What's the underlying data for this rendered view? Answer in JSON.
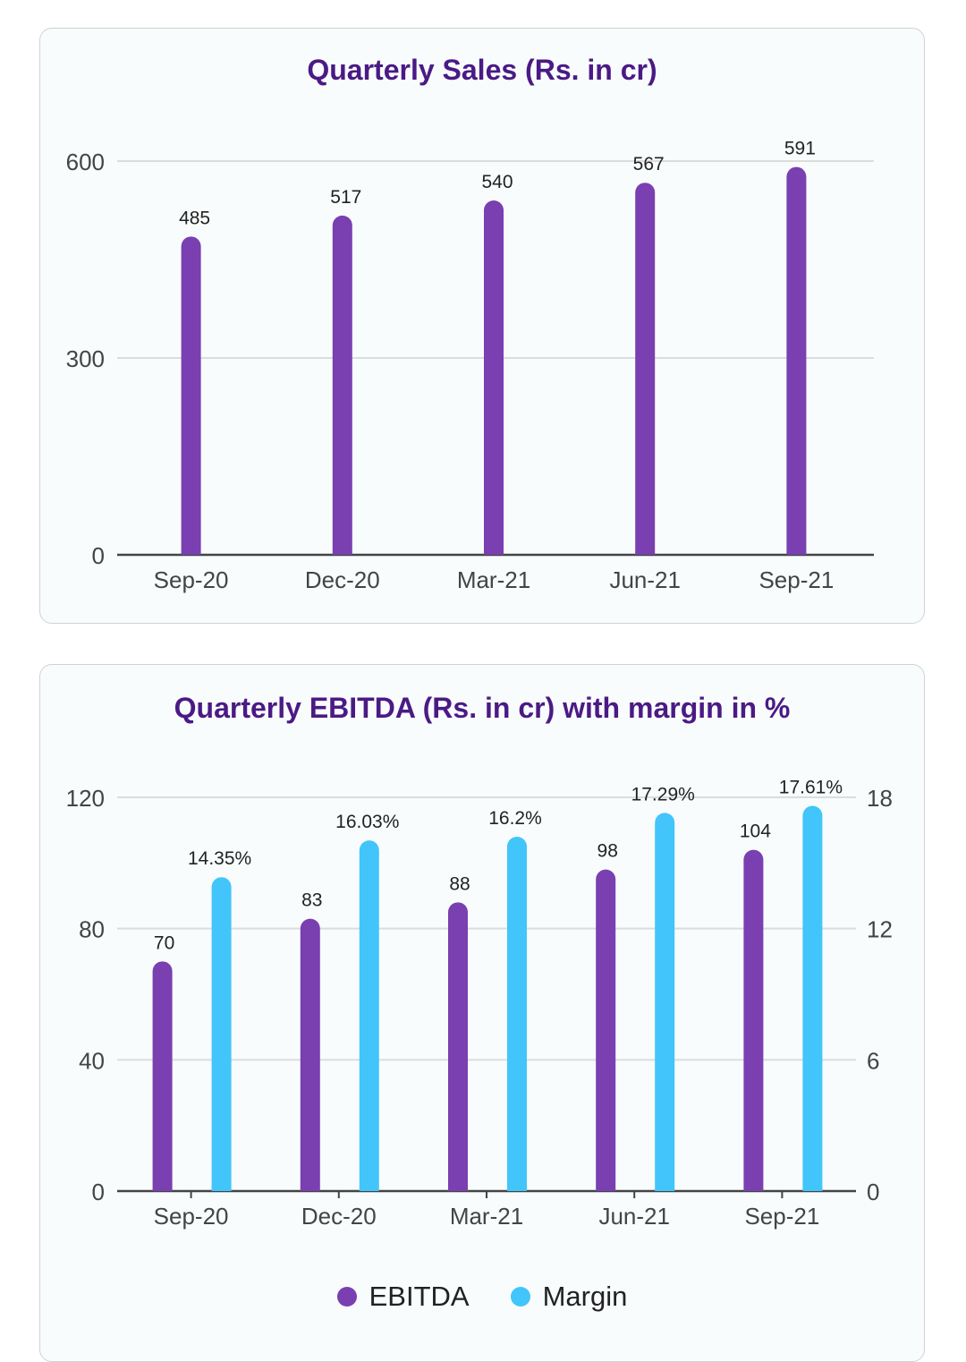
{
  "charts": {
    "sales": {
      "title": "Quarterly Sales (Rs. in cr)"
    },
    "ebitda": {
      "title": "Quarterly EBITDA (Rs. in cr) with margin in %",
      "legend": [
        {
          "label": "EBITDA",
          "color": "#7a3fb0"
        },
        {
          "label": "Margin",
          "color": "#42c5fa"
        }
      ]
    }
  },
  "chart_data": [
    {
      "type": "bar",
      "title": "Quarterly Sales (Rs. in cr)",
      "categories": [
        "Sep-20",
        "Dec-20",
        "Mar-21",
        "Jun-21",
        "Sep-21"
      ],
      "values": [
        485,
        517,
        540,
        567,
        591
      ],
      "data_labels": [
        "485",
        "517",
        "540",
        "567",
        "591"
      ],
      "y_ticks": [
        "0",
        "300",
        "600"
      ],
      "ylim": [
        0,
        600
      ],
      "grid": true,
      "color": "#7a3fb0"
    },
    {
      "type": "bar",
      "title": "Quarterly EBITDA (Rs. in cr) with margin in %",
      "categories": [
        "Sep-20",
        "Dec-20",
        "Mar-21",
        "Jun-21",
        "Sep-21"
      ],
      "series": [
        {
          "name": "EBITDA",
          "axis": "left",
          "values": [
            70,
            83,
            88,
            98,
            104
          ],
          "data_labels": [
            "70",
            "83",
            "88",
            "98",
            "104"
          ],
          "color": "#7a3fb0"
        },
        {
          "name": "Margin",
          "axis": "right",
          "values": [
            14.35,
            16.03,
            16.2,
            17.29,
            17.61
          ],
          "data_labels": [
            "14.35%",
            "16.03%",
            "16.2%",
            "17.29%",
            "17.61%"
          ],
          "color": "#42c5fa"
        }
      ],
      "y_ticks_left": [
        "0",
        "40",
        "80",
        "120"
      ],
      "y_ticks_right": [
        "0",
        "6",
        "12",
        "18"
      ],
      "ylim_left": [
        0,
        120
      ],
      "ylim_right": [
        0,
        18
      ],
      "grid": true,
      "legend_position": "bottom"
    }
  ]
}
